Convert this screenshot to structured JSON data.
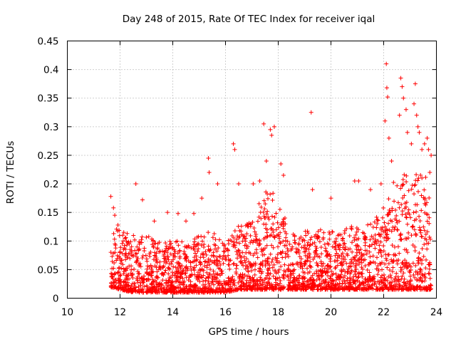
{
  "chart_data": {
    "type": "scatter",
    "title": "Day 248 of 2015, Rate Of TEC Index for receiver iqal",
    "xlabel": "GPS time / hours",
    "ylabel": "ROTI / TECUs",
    "xlim": [
      10,
      24
    ],
    "ylim": [
      0,
      0.45
    ],
    "xticks": [
      "10",
      "12",
      "14",
      "16",
      "18",
      "20",
      "22",
      "24"
    ],
    "yticks": [
      "0",
      "0.05",
      "0.1",
      "0.15",
      "0.2",
      "0.25",
      "0.3",
      "0.35",
      "0.4",
      "0.45"
    ],
    "grid": true,
    "marker": "+",
    "color": "#ff0000",
    "x_range_of_data": [
      11.65,
      23.8
    ],
    "points": [
      [
        11.65,
        0.178
      ],
      [
        11.75,
        0.158
      ],
      [
        11.8,
        0.145
      ],
      [
        11.92,
        0.128
      ],
      [
        12.1,
        0.11
      ],
      [
        12.6,
        0.2
      ],
      [
        12.85,
        0.172
      ],
      [
        13.3,
        0.135
      ],
      [
        13.8,
        0.15
      ],
      [
        14.2,
        0.148
      ],
      [
        14.5,
        0.135
      ],
      [
        14.8,
        0.148
      ],
      [
        15.1,
        0.175
      ],
      [
        15.35,
        0.245
      ],
      [
        15.38,
        0.22
      ],
      [
        15.7,
        0.2
      ],
      [
        16.3,
        0.27
      ],
      [
        16.35,
        0.26
      ],
      [
        16.5,
        0.2
      ],
      [
        17.05,
        0.2
      ],
      [
        17.3,
        0.205
      ],
      [
        17.45,
        0.305
      ],
      [
        17.55,
        0.24
      ],
      [
        17.7,
        0.295
      ],
      [
        17.75,
        0.285
      ],
      [
        17.85,
        0.3
      ],
      [
        18.1,
        0.235
      ],
      [
        18.2,
        0.215
      ],
      [
        19.25,
        0.325
      ],
      [
        19.3,
        0.19
      ],
      [
        20.0,
        0.175
      ],
      [
        20.9,
        0.205
      ],
      [
        21.05,
        0.205
      ],
      [
        21.5,
        0.19
      ],
      [
        21.9,
        0.2
      ],
      [
        22.1,
        0.41
      ],
      [
        22.12,
        0.368
      ],
      [
        22.15,
        0.352
      ],
      [
        22.05,
        0.31
      ],
      [
        22.2,
        0.28
      ],
      [
        22.3,
        0.24
      ],
      [
        22.6,
        0.32
      ],
      [
        22.65,
        0.385
      ],
      [
        22.7,
        0.37
      ],
      [
        22.75,
        0.35
      ],
      [
        22.85,
        0.33
      ],
      [
        22.9,
        0.29
      ],
      [
        23.05,
        0.27
      ],
      [
        23.15,
        0.34
      ],
      [
        23.2,
        0.375
      ],
      [
        23.25,
        0.32
      ],
      [
        23.3,
        0.3
      ],
      [
        23.35,
        0.29
      ],
      [
        23.45,
        0.26
      ],
      [
        23.55,
        0.27
      ],
      [
        23.65,
        0.28
      ],
      [
        23.7,
        0.26
      ],
      [
        23.75,
        0.22
      ],
      [
        23.8,
        0.25
      ]
    ],
    "density_envelope": {
      "x": [
        11.6,
        12.0,
        12.5,
        13.0,
        13.5,
        14.0,
        14.5,
        15.0,
        15.5,
        16.0,
        16.5,
        17.0,
        17.5,
        18.0,
        18.5,
        19.0,
        19.5,
        20.0,
        20.5,
        21.0,
        21.5,
        22.0,
        22.5,
        23.0,
        23.5,
        23.85
      ],
      "upper": [
        0.13,
        0.12,
        0.11,
        0.11,
        0.1,
        0.1,
        0.1,
        0.11,
        0.12,
        0.1,
        0.13,
        0.14,
        0.19,
        0.18,
        0.13,
        0.12,
        0.12,
        0.12,
        0.12,
        0.13,
        0.13,
        0.16,
        0.22,
        0.22,
        0.23,
        0.22
      ],
      "lower": [
        0.02,
        0.015,
        0.01,
        0.01,
        0.01,
        0.01,
        0.01,
        0.01,
        0.01,
        0.01,
        0.015,
        0.015,
        0.015,
        0.015,
        0.015,
        0.015,
        0.015,
        0.015,
        0.015,
        0.015,
        0.015,
        0.015,
        0.015,
        0.015,
        0.015,
        0.015
      ]
    }
  }
}
